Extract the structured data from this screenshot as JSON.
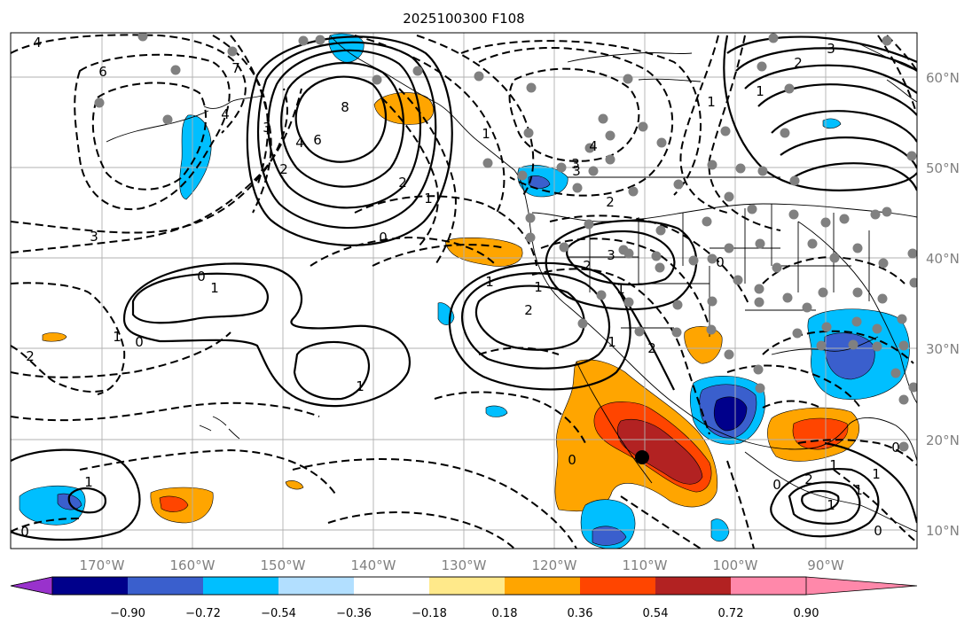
{
  "title": "2025100300 F108",
  "lon_labels": [
    "170°W",
    "160°W",
    "150°W",
    "140°W",
    "130°W",
    "120°W",
    "110°W",
    "100°W",
    "90°W"
  ],
  "lat_labels": [
    "60°N",
    "50°N",
    "40°N",
    "30°N",
    "20°N",
    "10°N"
  ],
  "colorbar": {
    "ticks": [
      "−0.90",
      "−0.72",
      "−0.54",
      "−0.36",
      "−0.18",
      "0.18",
      "0.36",
      "0.54",
      "0.72",
      "0.90"
    ],
    "colors": [
      "#9932cc",
      "#00008b",
      "#3a5fcd",
      "#00bfff",
      "#b2dfff",
      "#ffffff",
      "#ffe98a",
      "#ffa500",
      "#ff4500",
      "#b22222",
      "#ff88aa"
    ]
  },
  "contour_labels": [
    "4",
    "6",
    "3",
    "7",
    "4",
    "3",
    "2",
    "8",
    "6",
    "4",
    "2",
    "1",
    "3",
    "1",
    "2",
    "1",
    "0",
    "0",
    "1",
    "1",
    "3",
    "1",
    "2",
    "1",
    "0",
    "2",
    "2",
    "1",
    "1",
    "2",
    "3",
    "1",
    "0",
    "2",
    "1",
    "0",
    "1",
    "0",
    "1",
    "1",
    "0",
    "2",
    "1",
    "1",
    "0",
    "0",
    "4",
    "3"
  ],
  "colors": {
    "line": "#000000",
    "grid": "#b0b0b0",
    "coast": "#000000",
    "station": "#808080"
  }
}
